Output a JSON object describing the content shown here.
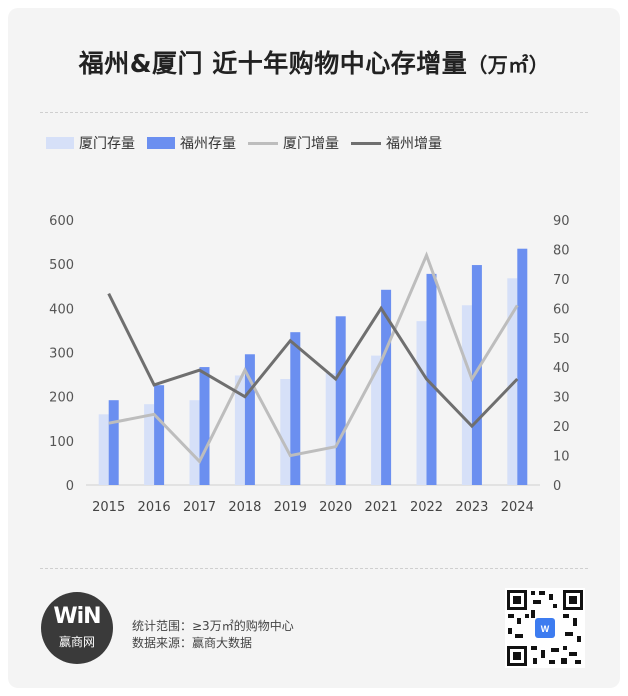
{
  "title": {
    "main": "福州&厦门 近十年购物中心存增量",
    "unit": "（万㎡）"
  },
  "legend": [
    {
      "label": "厦门存量",
      "kind": "bar",
      "color": "#d6e0f8"
    },
    {
      "label": "福州存量",
      "kind": "bar",
      "color": "#6b8ff0"
    },
    {
      "label": "厦门增量",
      "kind": "line",
      "color": "#bdbdbd"
    },
    {
      "label": "福州增量",
      "kind": "line",
      "color": "#6f6f6f"
    }
  ],
  "chart_data": {
    "type": "bar",
    "categories": [
      "2015",
      "2016",
      "2017",
      "2018",
      "2019",
      "2020",
      "2021",
      "2022",
      "2023",
      "2024"
    ],
    "left_axis": {
      "ticks": [
        0,
        100,
        200,
        300,
        400,
        500,
        600
      ],
      "ylim": [
        0,
        600
      ]
    },
    "right_axis": {
      "ticks": [
        0,
        10,
        20,
        30,
        40,
        50,
        60,
        70,
        80,
        90
      ],
      "ylim": [
        0,
        90
      ]
    },
    "series": [
      {
        "name": "厦门存量",
        "type": "bar",
        "axis": "left",
        "color": "#d6e0f8",
        "values": [
          160,
          183,
          192,
          248,
          240,
          253,
          293,
          371,
          407,
          468
        ]
      },
      {
        "name": "福州存量",
        "type": "bar",
        "axis": "left",
        "color": "#6b8ff0",
        "values": [
          192,
          226,
          267,
          296,
          346,
          382,
          442,
          478,
          498,
          535
        ]
      },
      {
        "name": "厦门增量",
        "type": "line",
        "axis": "right",
        "color": "#bdbdbd",
        "values": [
          21,
          24,
          8,
          39,
          10,
          13,
          42,
          78,
          36,
          61
        ]
      },
      {
        "name": "福州增量",
        "type": "line",
        "axis": "right",
        "color": "#6f6f6f",
        "values": [
          65,
          34,
          39,
          30,
          49,
          36,
          60,
          36,
          20,
          36
        ]
      }
    ],
    "grid": false,
    "legend_position": "top-left"
  },
  "footer": {
    "scope": "统计范围：≥3万㎡的购物中心",
    "source": "数据来源：赢商大数据",
    "logo_big": "WiN",
    "logo_small": "赢商网"
  }
}
